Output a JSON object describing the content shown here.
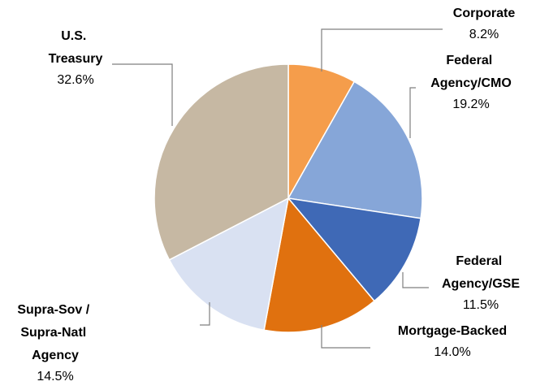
{
  "chart_data": {
    "type": "pie",
    "categories": [
      "Corporate",
      "Federal Agency/CMO",
      "Federal Agency/GSE",
      "Mortgage-Backed",
      "Supra-Sov / Supra-Natl Agency",
      "U.S. Treasury"
    ],
    "values": [
      8.2,
      19.2,
      11.5,
      14.0,
      14.5,
      32.6
    ],
    "value_labels": [
      "8.2%",
      "19.2%",
      "11.5%",
      "14.0%",
      "14.5%",
      "32.6%"
    ],
    "colors": [
      "#f59d4b",
      "#86a6d8",
      "#3f69b6",
      "#e0710f",
      "#d9e1f2",
      "#c6b8a3"
    ]
  }
}
